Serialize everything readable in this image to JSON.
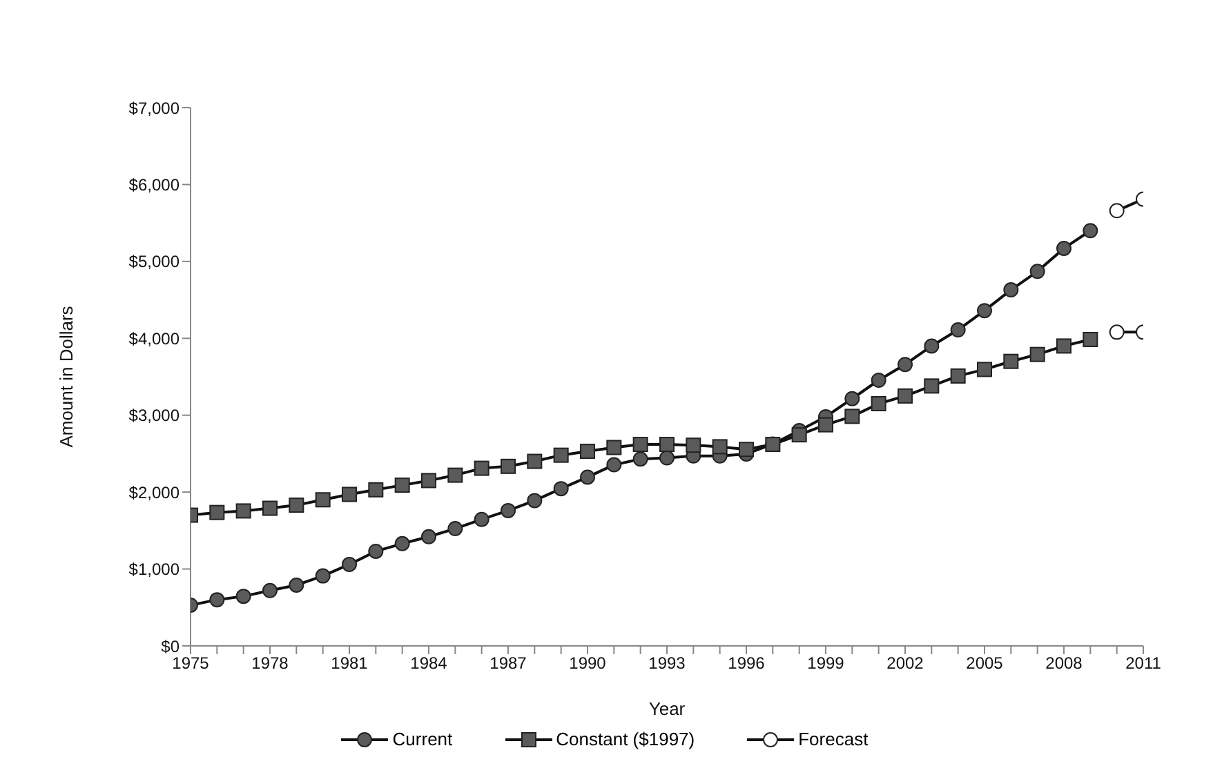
{
  "chart_data": {
    "type": "line",
    "xlabel": "Year",
    "ylabel": "Amount in Dollars",
    "xlim": [
      1975,
      2011
    ],
    "xticks": [
      1975,
      {
        "value": 1976,
        "label": null
      },
      {
        "value": 1977,
        "label": null
      },
      1978,
      {
        "value": 1979,
        "label": null
      },
      {
        "value": 1980,
        "label": null
      },
      1981,
      {
        "value": 1982,
        "label": null
      },
      {
        "value": 1983,
        "label": null
      },
      1984,
      {
        "value": 1985,
        "label": null
      },
      {
        "value": 1986,
        "label": null
      },
      1987,
      {
        "value": 1988,
        "label": null
      },
      {
        "value": 1989,
        "label": null
      },
      1990,
      {
        "value": 1991,
        "label": null
      },
      {
        "value": 1992,
        "label": null
      },
      1993,
      {
        "value": 1994,
        "label": null
      },
      {
        "value": 1995,
        "label": null
      },
      1996,
      {
        "value": 1997,
        "label": null
      },
      {
        "value": 1998,
        "label": null
      },
      1999,
      {
        "value": 2000,
        "label": null
      },
      {
        "value": 2001,
        "label": null
      },
      2002,
      {
        "value": 2003,
        "label": null
      },
      {
        "value": 2004,
        "label": null
      },
      2005,
      {
        "value": 2006,
        "label": null
      },
      {
        "value": 2007,
        "label": null
      },
      2008,
      {
        "value": 2009,
        "label": null
      },
      {
        "value": 2010,
        "label": null
      },
      2011
    ],
    "ylim": [
      0,
      7000
    ],
    "yticks": [
      {
        "value": 0,
        "label": "$0"
      },
      {
        "value": 1000,
        "label": "$1,000"
      },
      {
        "value": 2000,
        "label": "$2,000"
      },
      {
        "value": 3000,
        "label": "$3,000"
      },
      {
        "value": 4000,
        "label": "$4,000"
      },
      {
        "value": 5000,
        "label": "$5,000"
      },
      {
        "value": 6000,
        "label": "$6,000"
      },
      {
        "value": 7000,
        "label": "$7,000"
      }
    ],
    "grid": false,
    "legend": "bottom",
    "line_style": "solid",
    "series": [
      {
        "name": "Current",
        "color": "#5a5a5a",
        "marker": "circle",
        "x": [
          1975,
          1976,
          1977,
          1978,
          1979,
          1980,
          1981,
          1982,
          1983,
          1984,
          1985,
          1986,
          1987,
          1988,
          1989,
          1990,
          1991,
          1992,
          1993,
          1994,
          1995,
          1996,
          1997,
          1998,
          1999,
          2000,
          2001,
          2002,
          2003,
          2004,
          2005,
          2006,
          2007,
          2008,
          2009
        ],
        "values": [
          530,
          600,
          645,
          720,
          790,
          910,
          1060,
          1230,
          1330,
          1420,
          1525,
          1645,
          1760,
          1890,
          2045,
          2195,
          2355,
          2430,
          2445,
          2470,
          2470,
          2495,
          2625,
          2800,
          2980,
          3215,
          3455,
          3660,
          3900,
          4110,
          4360,
          4630,
          4870,
          5170,
          5400
        ]
      },
      {
        "name": "Constant ($1997)",
        "color": "#5a5a5a",
        "marker": "square",
        "x": [
          1975,
          1976,
          1977,
          1978,
          1979,
          1980,
          1981,
          1982,
          1983,
          1984,
          1985,
          1986,
          1987,
          1988,
          1989,
          1990,
          1991,
          1992,
          1993,
          1994,
          1995,
          1996,
          1997,
          1998,
          1999,
          2000,
          2001,
          2002,
          2003,
          2004,
          2005,
          2006,
          2007,
          2008,
          2009
        ],
        "values": [
          1700,
          1735,
          1755,
          1790,
          1830,
          1900,
          1970,
          2030,
          2090,
          2150,
          2220,
          2310,
          2335,
          2400,
          2480,
          2530,
          2580,
          2620,
          2620,
          2610,
          2590,
          2555,
          2620,
          2745,
          2875,
          2985,
          3150,
          3250,
          3380,
          3510,
          3595,
          3700,
          3790,
          3900,
          3985
        ]
      },
      {
        "name": "Forecast",
        "color": "#ffffff",
        "marker": "circle",
        "x": [
          2010,
          2011
        ],
        "values": [
          5660,
          5810
        ]
      },
      {
        "color": "#ffffff",
        "marker": "circle",
        "x": [
          2010,
          2011
        ],
        "values": [
          4080,
          4080
        ]
      }
    ]
  }
}
